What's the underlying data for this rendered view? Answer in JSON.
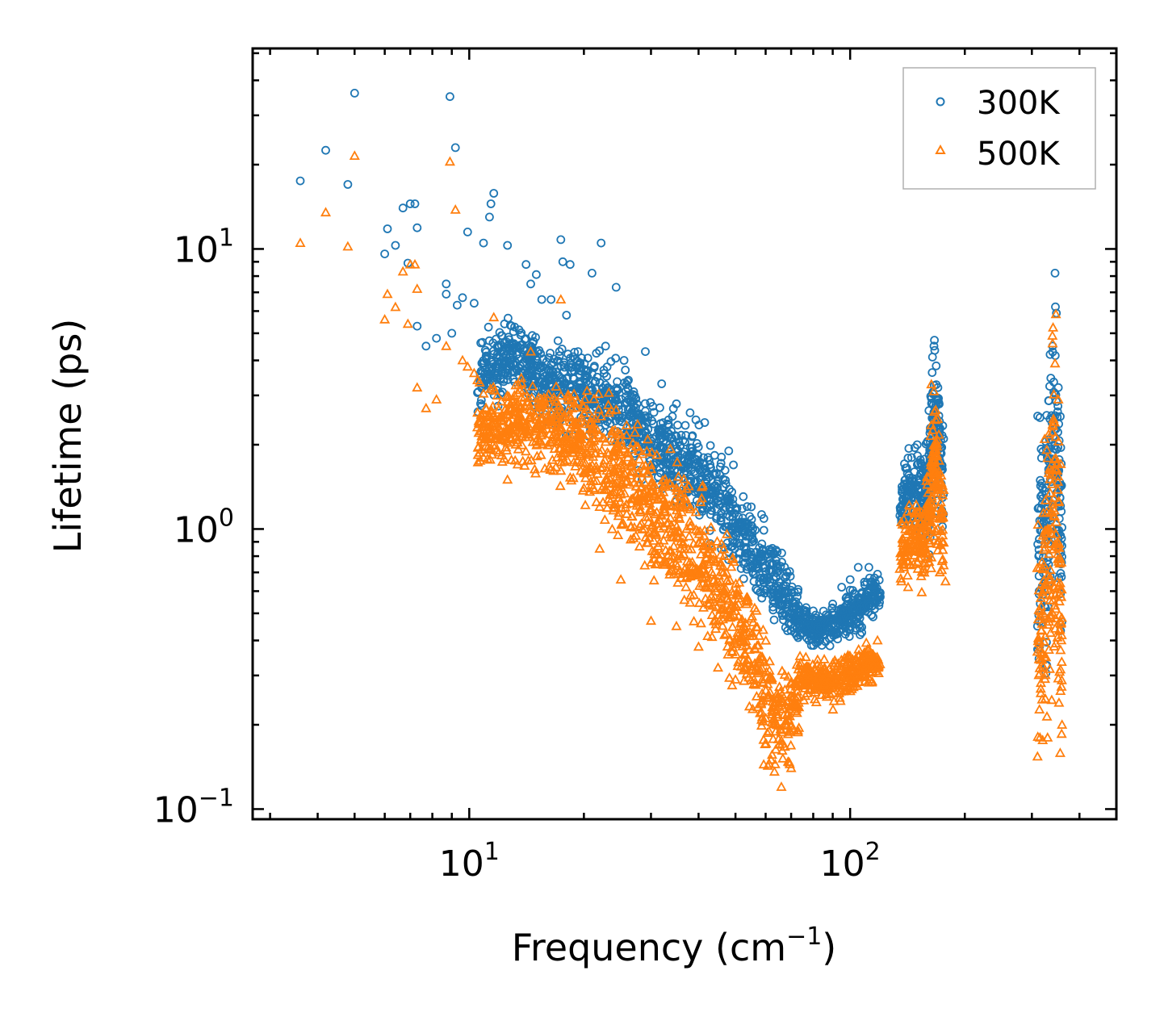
{
  "chart_data": {
    "type": "scatter",
    "title": "",
    "xlabel": "Frequency (cm",
    "xlabel_sup": "−1",
    "xlabel_end": ")",
    "ylabel": "Lifetime (ps)",
    "xscale": "log",
    "yscale": "log",
    "xlim": [
      2.7,
      500
    ],
    "ylim": [
      0.092,
      52
    ],
    "legend_position": "top-right",
    "x_ticks": [
      {
        "value": 10,
        "base": "10",
        "exp": "1"
      },
      {
        "value": 100,
        "base": "10",
        "exp": "2"
      }
    ],
    "y_ticks": [
      {
        "value": 0.1,
        "base": "10",
        "exp": "−1"
      },
      {
        "value": 1,
        "base": "10",
        "exp": "0"
      },
      {
        "value": 10,
        "base": "10",
        "exp": "1"
      }
    ],
    "series": [
      {
        "name": "300K",
        "marker": "circle",
        "color": "#1f77b4",
        "points": [
          [
            3.6,
            17.5
          ],
          [
            4.2,
            22.5
          ],
          [
            4.8,
            17.0
          ],
          [
            5.0,
            36.0
          ],
          [
            6.0,
            9.6
          ],
          [
            6.1,
            11.8
          ],
          [
            6.4,
            10.3
          ],
          [
            6.7,
            14.0
          ],
          [
            6.9,
            8.9
          ],
          [
            7.0,
            14.5
          ],
          [
            7.2,
            14.5
          ],
          [
            7.3,
            11.9
          ],
          [
            7.3,
            5.3
          ],
          [
            7.7,
            4.5
          ],
          [
            8.2,
            4.8
          ],
          [
            8.7,
            7.5
          ],
          [
            8.7,
            6.9
          ],
          [
            8.9,
            35.0
          ],
          [
            9.0,
            5.0
          ],
          [
            9.2,
            23.0
          ],
          [
            9.3,
            6.3
          ],
          [
            9.6,
            6.7
          ],
          [
            9.9,
            11.5
          ],
          [
            10.3,
            6.4
          ],
          [
            10.9,
            10.5
          ],
          [
            11.1,
            3.3
          ],
          [
            11.3,
            13.0
          ],
          [
            11.4,
            14.5
          ],
          [
            11.6,
            15.8
          ],
          [
            12.6,
            10.3
          ],
          [
            13.4,
            4.5
          ],
          [
            14.1,
            8.8
          ],
          [
            14.5,
            7.5
          ],
          [
            15.0,
            8.1
          ],
          [
            15.5,
            6.6
          ],
          [
            16.4,
            6.6
          ],
          [
            17.1,
            4.7
          ],
          [
            17.4,
            10.8
          ],
          [
            17.6,
            9.0
          ],
          [
            18.0,
            5.8
          ],
          [
            18.4,
            8.8
          ],
          [
            19.3,
            4.3
          ],
          [
            21.0,
            8.2
          ],
          [
            22.2,
            10.5
          ],
          [
            22.8,
            4.5
          ],
          [
            24.3,
            7.3
          ],
          [
            25.5,
            4.0
          ],
          [
            29.0,
            4.3
          ],
          [
            32.0,
            3.3
          ],
          [
            35.0,
            2.8
          ],
          [
            38.0,
            2.6
          ],
          [
            41.5,
            2.4
          ],
          [
            48.0,
            1.9
          ],
          [
            55.0,
            1.2
          ],
          [
            62.0,
            0.84
          ],
          [
            68.0,
            0.68
          ],
          [
            72.0,
            0.55
          ],
          [
            80.0,
            0.51
          ],
          [
            90.0,
            0.54
          ],
          [
            95.0,
            0.62
          ],
          [
            100.0,
            0.66
          ],
          [
            105.0,
            0.73
          ],
          [
            112.0,
            0.73
          ],
          [
            118.0,
            0.69
          ],
          [
            140.0,
            1.3
          ],
          [
            145.0,
            1.8
          ],
          [
            150.0,
            2.0
          ],
          [
            155.0,
            1.6
          ],
          [
            162.0,
            2.2
          ],
          [
            166.0,
            4.5
          ],
          [
            170.0,
            3.2
          ],
          [
            176.0,
            2.1
          ],
          [
            315.0,
            2.5
          ],
          [
            320.0,
            1.4
          ],
          [
            335.0,
            4.2
          ],
          [
            340.0,
            4.5
          ],
          [
            345.0,
            8.2
          ],
          [
            348.0,
            5.9
          ],
          [
            352.0,
            3.2
          ]
        ],
        "bands": [
          [
            [
              10.5,
              3.5,
              1.25
            ],
            [
              13.0,
              4.2,
              1.3
            ],
            [
              16.0,
              3.3,
              1.3
            ],
            [
              20.0,
              3.1,
              1.35
            ],
            [
              25.0,
              2.7,
              1.3
            ],
            [
              30.0,
              2.1,
              1.35
            ],
            [
              35.0,
              1.75,
              1.35
            ],
            [
              40.0,
              1.55,
              1.35
            ],
            [
              45.0,
              1.3,
              1.35
            ],
            [
              50.0,
              1.05,
              1.3
            ],
            [
              55.0,
              0.86,
              1.3
            ],
            [
              60.0,
              0.73,
              1.3
            ],
            [
              65.0,
              0.63,
              1.3
            ],
            [
              70.0,
              0.53,
              1.25
            ],
            [
              75.0,
              0.46,
              1.15
            ],
            [
              80.0,
              0.44,
              1.12
            ],
            [
              90.0,
              0.45,
              1.15
            ],
            [
              100.0,
              0.5,
              1.18
            ],
            [
              110.0,
              0.55,
              1.18
            ],
            [
              120.0,
              0.58,
              1.12
            ]
          ],
          [
            [
              135.0,
              1.3,
              1.3
            ],
            [
              142.0,
              1.35,
              1.35
            ],
            [
              150.0,
              1.4,
              1.3
            ],
            [
              156.0,
              1.3,
              1.3
            ],
            [
              162.0,
              1.7,
              1.7
            ],
            [
              166.0,
              2.8,
              1.6
            ],
            [
              170.0,
              2.1,
              1.6
            ],
            [
              176.0,
              1.5,
              1.4
            ]
          ],
          [
            [
              310.0,
              0.7,
              2.6
            ],
            [
              320.0,
              0.9,
              2.4
            ],
            [
              332.0,
              1.2,
              2.6
            ],
            [
              342.0,
              2.2,
              2.6
            ],
            [
              352.0,
              1.6,
              2.6
            ],
            [
              360.0,
              0.8,
              2.0
            ]
          ]
        ]
      },
      {
        "name": "500K",
        "marker": "triangle",
        "color": "#ff7f0e",
        "points": [
          [
            3.6,
            10.5
          ],
          [
            4.2,
            13.5
          ],
          [
            4.8,
            10.2
          ],
          [
            5.0,
            21.5
          ],
          [
            6.0,
            5.6
          ],
          [
            6.1,
            6.9
          ],
          [
            6.4,
            6.2
          ],
          [
            6.7,
            8.3
          ],
          [
            6.9,
            5.4
          ],
          [
            7.0,
            8.8
          ],
          [
            7.2,
            8.8
          ],
          [
            7.3,
            7.2
          ],
          [
            7.3,
            3.2
          ],
          [
            7.7,
            2.7
          ],
          [
            8.2,
            2.9
          ],
          [
            8.7,
            4.5
          ],
          [
            8.9,
            20.5
          ],
          [
            9.2,
            13.8
          ],
          [
            9.6,
            4.0
          ],
          [
            9.9,
            3.8
          ],
          [
            10.3,
            3.6
          ],
          [
            10.9,
            1.8
          ],
          [
            11.3,
            2.5
          ],
          [
            11.6,
            5.7
          ],
          [
            12.6,
            1.5
          ],
          [
            13.4,
            1.7
          ],
          [
            14.5,
            4.3
          ],
          [
            15.5,
            2.2
          ],
          [
            17.0,
            1.8
          ],
          [
            17.4,
            6.6
          ],
          [
            18.5,
            2.9
          ],
          [
            20.0,
            1.4
          ],
          [
            22.0,
            0.85
          ],
          [
            25.0,
            0.66
          ],
          [
            30.0,
            0.47
          ],
          [
            35.0,
            0.45
          ],
          [
            40.0,
            0.38
          ],
          [
            45.0,
            0.32
          ],
          [
            50.0,
            0.29
          ],
          [
            58.0,
            0.22
          ],
          [
            62.0,
            0.15
          ],
          [
            66.0,
            0.12
          ],
          [
            70.0,
            0.14
          ],
          [
            78.0,
            0.29
          ],
          [
            90.0,
            0.26
          ],
          [
            100.0,
            0.28
          ],
          [
            110.0,
            0.35
          ],
          [
            118.0,
            0.4
          ],
          [
            135.0,
            0.72
          ],
          [
            142.0,
            0.62
          ],
          [
            150.0,
            0.76
          ],
          [
            160.0,
            0.8
          ],
          [
            166.0,
            3.1
          ],
          [
            172.0,
            0.7
          ],
          [
            178.0,
            0.65
          ],
          [
            315.0,
            0.18
          ],
          [
            330.0,
            0.18
          ],
          [
            340.0,
            4.6
          ],
          [
            345.0,
            3.9
          ],
          [
            352.0,
            2.9
          ],
          [
            360.0,
            0.2
          ]
        ],
        "bands": [
          [
            [
              10.5,
              2.2,
              1.3
            ],
            [
              13.0,
              2.4,
              1.3
            ],
            [
              16.0,
              2.3,
              1.35
            ],
            [
              20.0,
              2.0,
              1.45
            ],
            [
              25.0,
              1.55,
              1.55
            ],
            [
              30.0,
              1.2,
              1.55
            ],
            [
              35.0,
              0.95,
              1.6
            ],
            [
              40.0,
              0.78,
              1.6
            ],
            [
              45.0,
              0.62,
              1.55
            ],
            [
              50.0,
              0.48,
              1.5
            ],
            [
              55.0,
              0.38,
              1.5
            ],
            [
              60.0,
              0.26,
              1.55
            ],
            [
              65.0,
              0.2,
              1.45
            ],
            [
              70.0,
              0.23,
              1.35
            ],
            [
              75.0,
              0.28,
              1.2
            ],
            [
              80.0,
              0.3,
              1.15
            ],
            [
              90.0,
              0.28,
              1.15
            ],
            [
              100.0,
              0.31,
              1.15
            ],
            [
              110.0,
              0.33,
              1.15
            ],
            [
              120.0,
              0.34,
              1.12
            ]
          ],
          [
            [
              135.0,
              0.8,
              1.2
            ],
            [
              142.0,
              0.92,
              1.3
            ],
            [
              150.0,
              0.95,
              1.25
            ],
            [
              156.0,
              0.85,
              1.3
            ],
            [
              162.0,
              1.2,
              1.7
            ],
            [
              166.0,
              1.8,
              1.7
            ],
            [
              170.0,
              1.4,
              1.6
            ],
            [
              176.0,
              0.95,
              1.45
            ]
          ],
          [
            [
              310.0,
              0.35,
              2.6
            ],
            [
              320.0,
              0.5,
              2.6
            ],
            [
              332.0,
              0.7,
              3.0
            ],
            [
              342.0,
              1.3,
              3.2
            ],
            [
              352.0,
              0.9,
              3.0
            ],
            [
              360.0,
              0.35,
              2.2
            ]
          ]
        ]
      }
    ]
  }
}
